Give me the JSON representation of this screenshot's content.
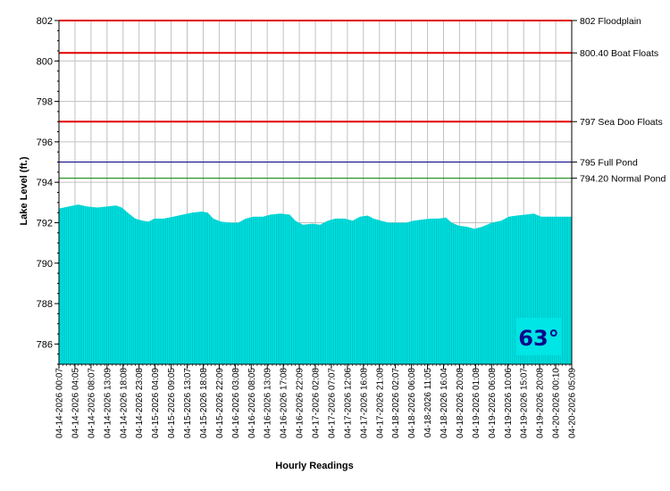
{
  "chart_data": {
    "type": "area",
    "xlabel": "Hourly Readings",
    "ylabel": "Lake Level (ft.)",
    "ylim": [
      785,
      802
    ],
    "yticks": [
      786,
      788,
      790,
      792,
      794,
      796,
      798,
      800,
      802
    ],
    "x_start": "04-14-2026 00:07",
    "x_end": "04-20-2026 05:09",
    "xtick_labels": [
      "04-14-2026 00:07",
      "04-14-2026 04:05",
      "04-14-2026 08:07",
      "04-14-2026 13:09",
      "04-14-2026 18:08",
      "04-14-2026 23:08",
      "04-15-2026 04:09",
      "04-15-2026 09:05",
      "04-15-2026 13:07",
      "04-15-2026 18:08",
      "04-15-2026 22:09",
      "04-16-2026 03:08",
      "04-16-2026 08:05",
      "04-16-2026 13:09",
      "04-16-2026 17:08",
      "04-16-2026 22:09",
      "04-17-2026 02:08",
      "04-17-2026 07:07",
      "04-17-2026 12:06",
      "04-17-2026 16:08",
      "04-17-2026 21:08",
      "04-18-2026 02:07",
      "04-18-2026 06:08",
      "04-18-2026 11:05",
      "04-18-2026 16:04",
      "04-18-2026 20:08",
      "04-19-2026 01:08",
      "04-19-2026 06:08",
      "04-19-2026 10:06",
      "04-19-2026 15:07",
      "04-19-2026 20:08",
      "04-20-2026 00:10",
      "04-20-2026 05:09"
    ],
    "series": [
      {
        "color": "#00e5e5",
        "points": [
          [
            0,
            792.7
          ],
          [
            5,
            792.8
          ],
          [
            10,
            792.9
          ],
          [
            15,
            792.8
          ],
          [
            20,
            792.75
          ],
          [
            25,
            792.8
          ],
          [
            30,
            792.85
          ],
          [
            33,
            792.75
          ],
          [
            36,
            792.5
          ],
          [
            40,
            792.2
          ],
          [
            44,
            792.1
          ],
          [
            47,
            792.05
          ],
          [
            50,
            792.2
          ],
          [
            55,
            792.2
          ],
          [
            60,
            792.3
          ],
          [
            65,
            792.4
          ],
          [
            70,
            792.5
          ],
          [
            75,
            792.55
          ],
          [
            78,
            792.5
          ],
          [
            81,
            792.2
          ],
          [
            85,
            792.05
          ],
          [
            90,
            792.0
          ],
          [
            94,
            792.0
          ],
          [
            98,
            792.2
          ],
          [
            102,
            792.3
          ],
          [
            107,
            792.3
          ],
          [
            111,
            792.4
          ],
          [
            116,
            792.45
          ],
          [
            121,
            792.4
          ],
          [
            124,
            792.1
          ],
          [
            128,
            791.9
          ],
          [
            133,
            791.95
          ],
          [
            137,
            791.9
          ],
          [
            141,
            792.1
          ],
          [
            145,
            792.2
          ],
          [
            150,
            792.2
          ],
          [
            154,
            792.1
          ],
          [
            158,
            792.3
          ],
          [
            162,
            792.35
          ],
          [
            165,
            792.2
          ],
          [
            169,
            792.1
          ],
          [
            173,
            792.0
          ],
          [
            178,
            792.0
          ],
          [
            182,
            792.0
          ],
          [
            186,
            792.1
          ],
          [
            190,
            792.15
          ],
          [
            195,
            792.2
          ],
          [
            199,
            792.2
          ],
          [
            203,
            792.25
          ],
          [
            206,
            792.0
          ],
          [
            210,
            791.85
          ],
          [
            214,
            791.8
          ],
          [
            218,
            791.7
          ],
          [
            222,
            791.8
          ],
          [
            227,
            792.0
          ],
          [
            232,
            792.1
          ],
          [
            236,
            792.3
          ],
          [
            240,
            792.35
          ],
          [
            245,
            792.4
          ],
          [
            249,
            792.45
          ],
          [
            253,
            792.3
          ],
          [
            258,
            792.3
          ],
          [
            262,
            792.3
          ],
          [
            266,
            792.3
          ],
          [
            269,
            792.3
          ]
        ]
      }
    ],
    "reference_lines": [
      {
        "y": 802,
        "label": "802 Floodplain",
        "color": "#e00000"
      },
      {
        "y": 800.4,
        "label": "800.40 Boat Floats",
        "color": "#e00000"
      },
      {
        "y": 797,
        "label": "797 Sea Doo Floats",
        "color": "#e00000"
      },
      {
        "y": 795,
        "label": "795 Full Pond",
        "color": "#000080"
      },
      {
        "y": 794.2,
        "label": "794.20 Normal Pond",
        "color": "#008000"
      }
    ],
    "grid": true,
    "annotations": [
      {
        "text": "63°",
        "background": "#00e5e5",
        "color": "#0a0a8c",
        "position": "bottom-right"
      }
    ]
  }
}
